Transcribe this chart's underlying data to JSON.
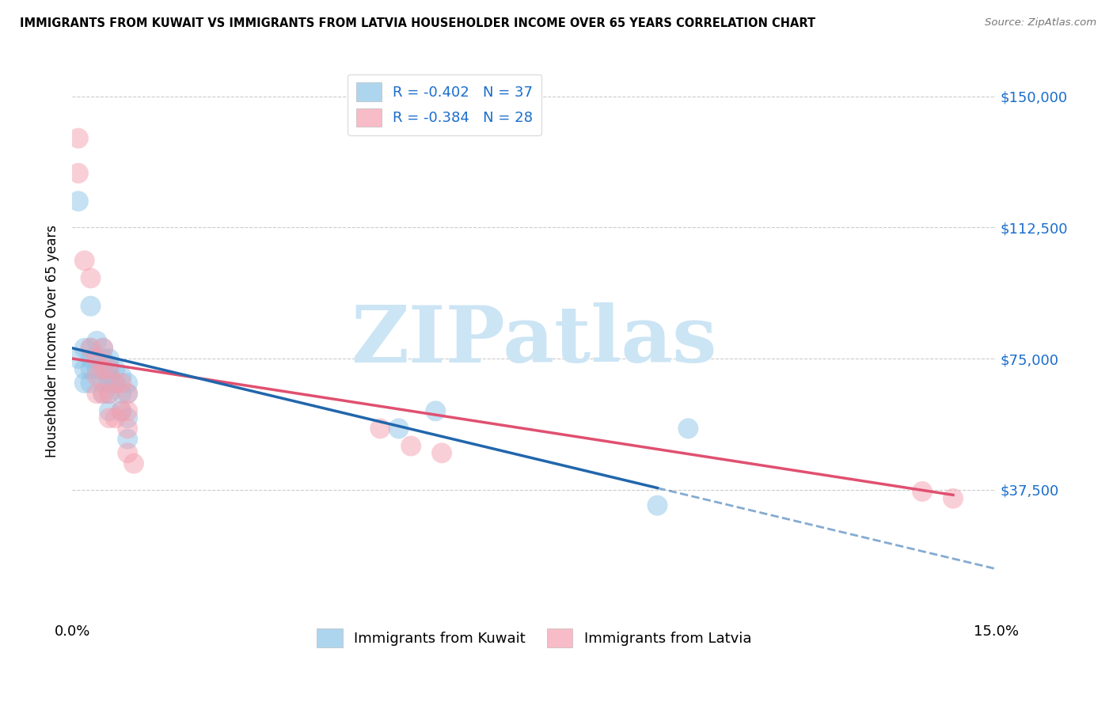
{
  "title": "IMMIGRANTS FROM KUWAIT VS IMMIGRANTS FROM LATVIA HOUSEHOLDER INCOME OVER 65 YEARS CORRELATION CHART",
  "source": "Source: ZipAtlas.com",
  "ylabel": "Householder Income Over 65 years",
  "y_ticks": [
    0,
    37500,
    75000,
    112500,
    150000
  ],
  "y_tick_labels": [
    "",
    "$37,500",
    "$75,000",
    "$112,500",
    "$150,000"
  ],
  "x_min": 0.0,
  "x_max": 0.15,
  "y_min": 0,
  "y_max": 160000,
  "kuwait_color": "#8cc4e8",
  "latvia_color": "#f4a0b0",
  "kuwait_line_color": "#2166ac",
  "latvia_line_color": "#e05070",
  "kuwait_R": -0.402,
  "kuwait_N": 37,
  "latvia_R": -0.384,
  "latvia_N": 28,
  "watermark": "ZIPatlas",
  "watermark_color": "#cce5f5",
  "legend_label_kuwait": "Immigrants from Kuwait",
  "legend_label_latvia": "Immigrants from Latvia",
  "kuwait_x": [
    0.001,
    0.001,
    0.002,
    0.002,
    0.002,
    0.003,
    0.003,
    0.003,
    0.003,
    0.003,
    0.004,
    0.004,
    0.004,
    0.005,
    0.005,
    0.005,
    0.005,
    0.005,
    0.006,
    0.006,
    0.006,
    0.006,
    0.006,
    0.006,
    0.007,
    0.007,
    0.008,
    0.008,
    0.008,
    0.009,
    0.009,
    0.009,
    0.009,
    0.053,
    0.059,
    0.095,
    0.1
  ],
  "kuwait_y": [
    120000,
    75000,
    78000,
    72000,
    68000,
    90000,
    78000,
    75000,
    72000,
    68000,
    80000,
    75000,
    72000,
    78000,
    75000,
    72000,
    68000,
    65000,
    75000,
    73000,
    70000,
    68000,
    65000,
    60000,
    72000,
    68000,
    70000,
    65000,
    60000,
    68000,
    65000,
    58000,
    52000,
    55000,
    60000,
    33000,
    55000
  ],
  "latvia_x": [
    0.001,
    0.001,
    0.002,
    0.003,
    0.003,
    0.004,
    0.004,
    0.004,
    0.005,
    0.005,
    0.005,
    0.006,
    0.006,
    0.006,
    0.007,
    0.007,
    0.008,
    0.008,
    0.009,
    0.009,
    0.009,
    0.009,
    0.01,
    0.05,
    0.055,
    0.06,
    0.138,
    0.143
  ],
  "latvia_y": [
    138000,
    128000,
    103000,
    98000,
    78000,
    75000,
    70000,
    65000,
    78000,
    72000,
    65000,
    72000,
    65000,
    58000,
    68000,
    58000,
    68000,
    60000,
    65000,
    60000,
    55000,
    48000,
    45000,
    55000,
    50000,
    48000,
    37000,
    35000
  ]
}
